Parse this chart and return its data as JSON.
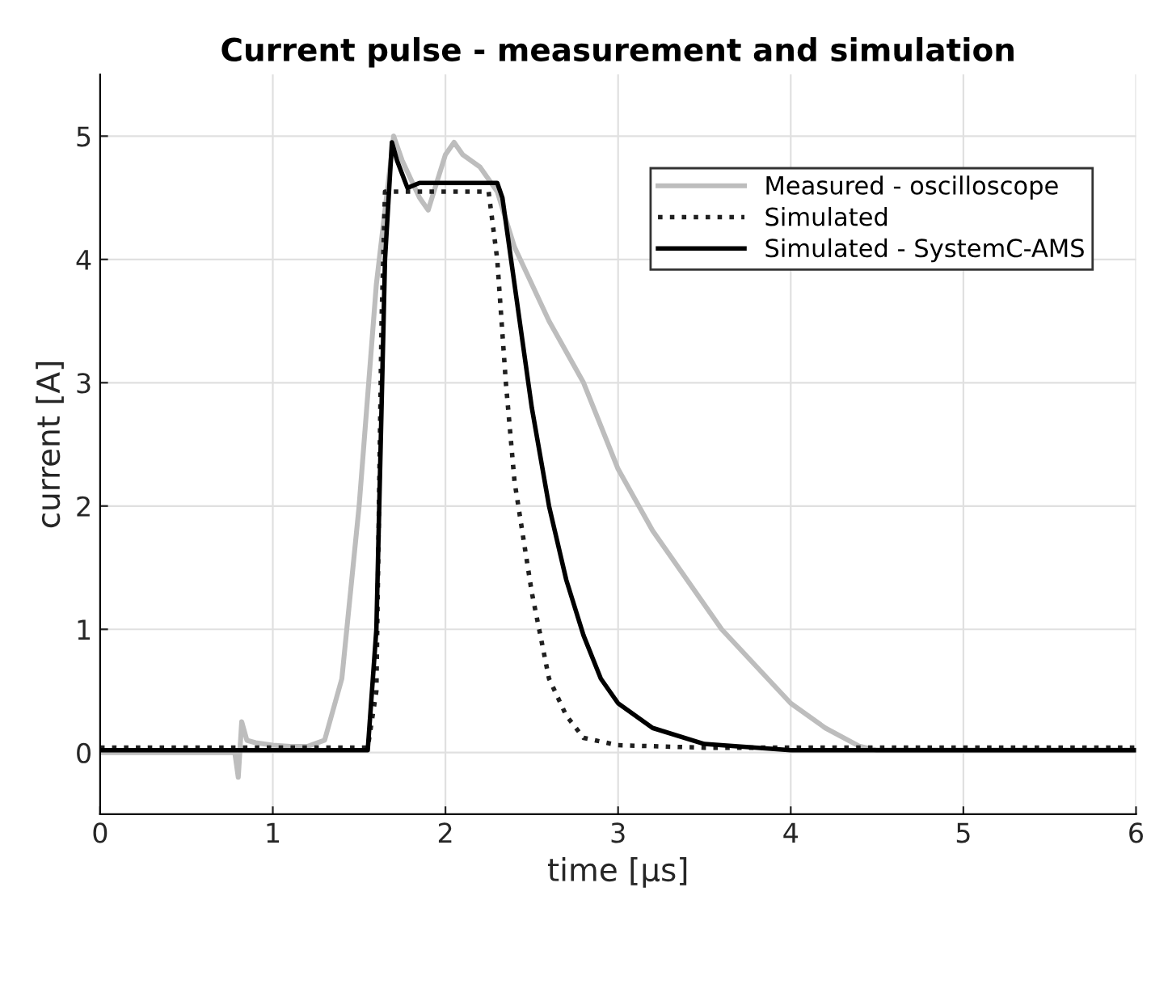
{
  "chart_data": {
    "type": "line",
    "title": "Current pulse - measurement and simulation",
    "xlabel": "time [μs]",
    "ylabel": "current [A]",
    "xlim": [
      0,
      6
    ],
    "ylim": [
      -0.5,
      5.5
    ],
    "xticks": [
      0,
      1,
      2,
      3,
      4,
      5,
      6
    ],
    "yticks": [
      0,
      1,
      2,
      3,
      4,
      5
    ],
    "grid": true,
    "legend": "top right",
    "series": [
      {
        "name": "Measured - oscilloscope",
        "color": "#bdbdbd",
        "line_style": "solid",
        "x": [
          0,
          0.3,
          0.6,
          0.78,
          0.8,
          0.82,
          0.85,
          0.9,
          1.0,
          1.1,
          1.2,
          1.3,
          1.4,
          1.5,
          1.6,
          1.7,
          1.75,
          1.85,
          1.9,
          2.0,
          2.05,
          2.1,
          2.2,
          2.3,
          2.4,
          2.5,
          2.6,
          2.8,
          3.0,
          3.2,
          3.4,
          3.6,
          3.8,
          4.0,
          4.2,
          4.4,
          4.5,
          5.0,
          5.5,
          6.0
        ],
        "values": [
          0.0,
          0.0,
          0.0,
          0.0,
          -0.2,
          0.25,
          0.1,
          0.08,
          0.06,
          0.05,
          0.05,
          0.1,
          0.6,
          2.0,
          3.8,
          5.0,
          4.8,
          4.5,
          4.4,
          4.85,
          4.95,
          4.85,
          4.75,
          4.55,
          4.1,
          3.8,
          3.5,
          3.0,
          2.3,
          1.8,
          1.4,
          1.0,
          0.7,
          0.4,
          0.2,
          0.05,
          0.02,
          0.02,
          0.02,
          0.02
        ]
      },
      {
        "name": "Simulated",
        "color": "#202020",
        "line_style": "dotted",
        "x": [
          0,
          1.55,
          1.6,
          1.63,
          1.65,
          2.25,
          2.3,
          2.35,
          2.4,
          2.5,
          2.6,
          2.7,
          2.8,
          3.0,
          3.5,
          6.0
        ],
        "values": [
          0.04,
          0.04,
          0.5,
          3.5,
          4.55,
          4.55,
          4.0,
          3.0,
          2.2,
          1.3,
          0.6,
          0.3,
          0.12,
          0.06,
          0.04,
          0.04
        ]
      },
      {
        "name": "Simulated - SystemC-AMS",
        "color": "#000000",
        "line_style": "solid",
        "x": [
          0,
          1.55,
          1.6,
          1.65,
          1.69,
          1.72,
          1.78,
          1.85,
          2.3,
          2.33,
          2.4,
          2.5,
          2.6,
          2.7,
          2.8,
          2.9,
          3.0,
          3.2,
          3.5,
          4.0,
          6.0
        ],
        "values": [
          0.02,
          0.02,
          1.0,
          4.0,
          4.95,
          4.8,
          4.58,
          4.62,
          4.62,
          4.5,
          3.8,
          2.8,
          2.0,
          1.4,
          0.95,
          0.6,
          0.4,
          0.2,
          0.07,
          0.02,
          0.02
        ]
      }
    ]
  }
}
